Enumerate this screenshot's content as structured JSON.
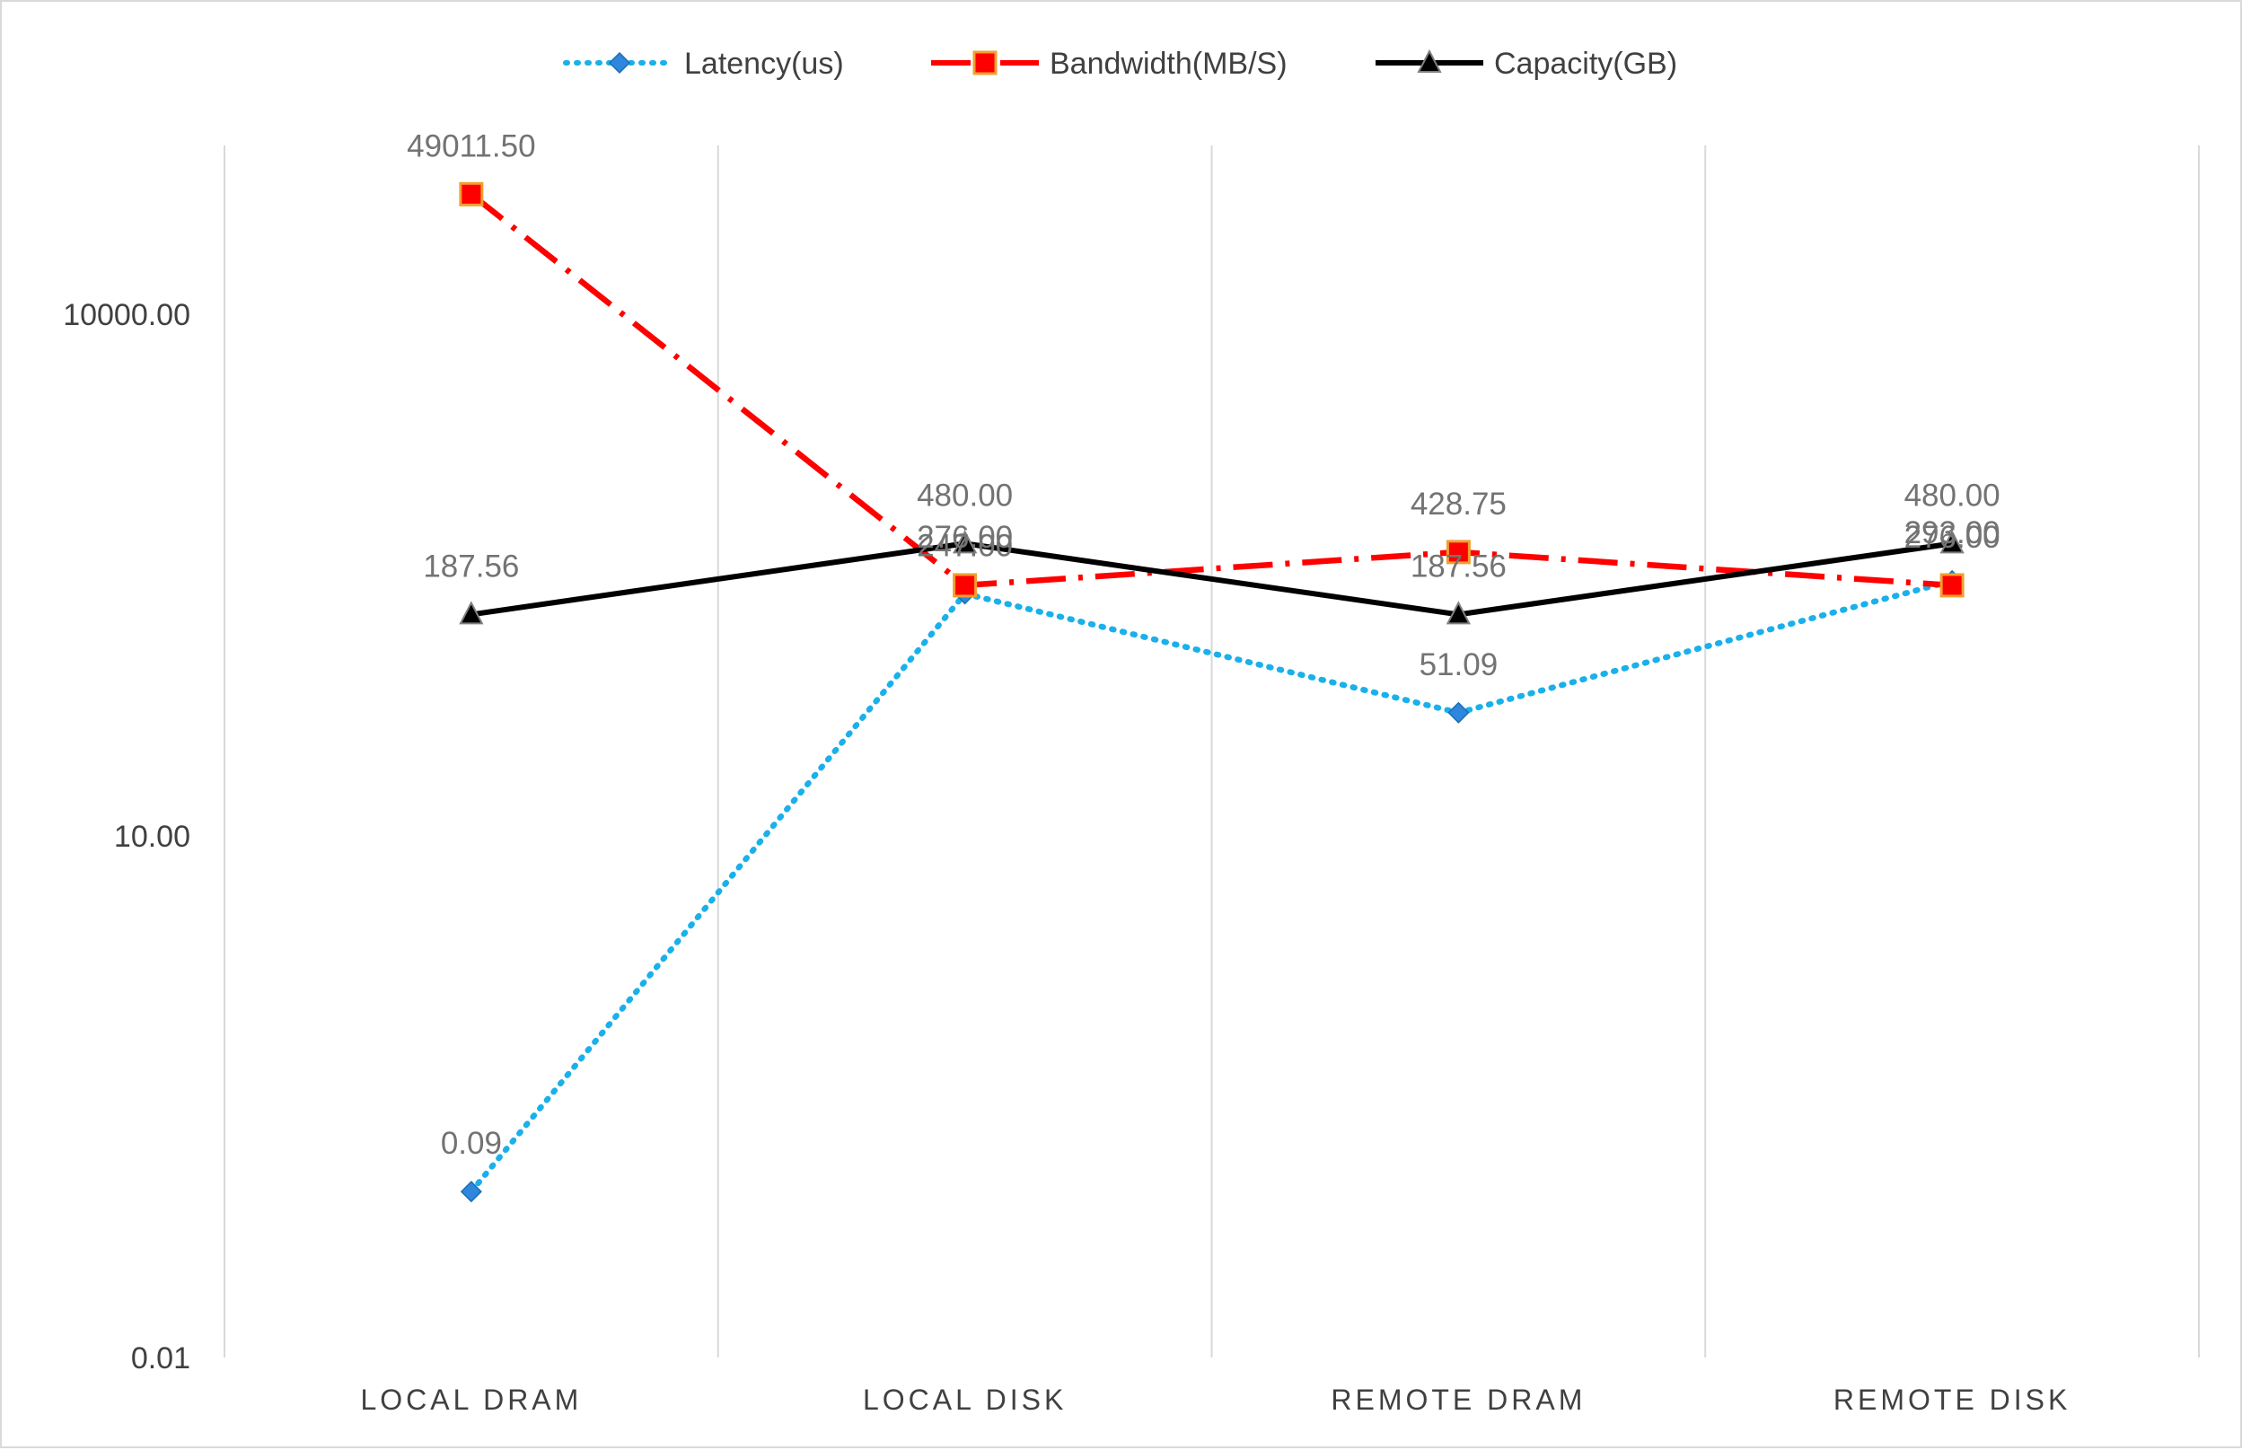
{
  "chart_data": {
    "type": "line",
    "title": "",
    "xlabel": "",
    "ylabel": "",
    "yscale": "log",
    "ylim": [
      0.01,
      100000
    ],
    "y_tick_labels": [
      "0.01",
      "10.00",
      "10000.00"
    ],
    "y_tick_values": [
      0.01,
      10,
      10000
    ],
    "categories": [
      "LOCAL DRAM",
      "LOCAL DISK",
      "REMOTE DRAM",
      "REMOTE DISK"
    ],
    "grid": "vertical",
    "legend_position": "top",
    "series": [
      {
        "name": "Latency(us)",
        "values": [
          0.09,
          247.0,
          51.09,
          293.0
        ],
        "labels": [
          "0.09",
          "247.00",
          "51.09",
          "293.00"
        ],
        "color": "#1ab0ea",
        "line_style": "dotted",
        "marker": "diamond",
        "marker_fill": "#2e86de"
      },
      {
        "name": "Bandwidth(MB/S)",
        "values": [
          49011.5,
          276.0,
          428.75,
          276.0
        ],
        "labels": [
          "49011.50",
          "276.00",
          "428.75",
          "276.00"
        ],
        "color": "#ff0000",
        "line_style": "dash-dot",
        "marker": "square",
        "marker_fill": "#ff0000"
      },
      {
        "name": "Capacity(GB)",
        "values": [
          187.56,
          480.0,
          187.56,
          480.0
        ],
        "labels": [
          "187.56",
          "480.00",
          "187.56",
          "480.00"
        ],
        "color": "#000000",
        "line_style": "solid",
        "marker": "triangle",
        "marker_fill": "#000000"
      }
    ]
  }
}
